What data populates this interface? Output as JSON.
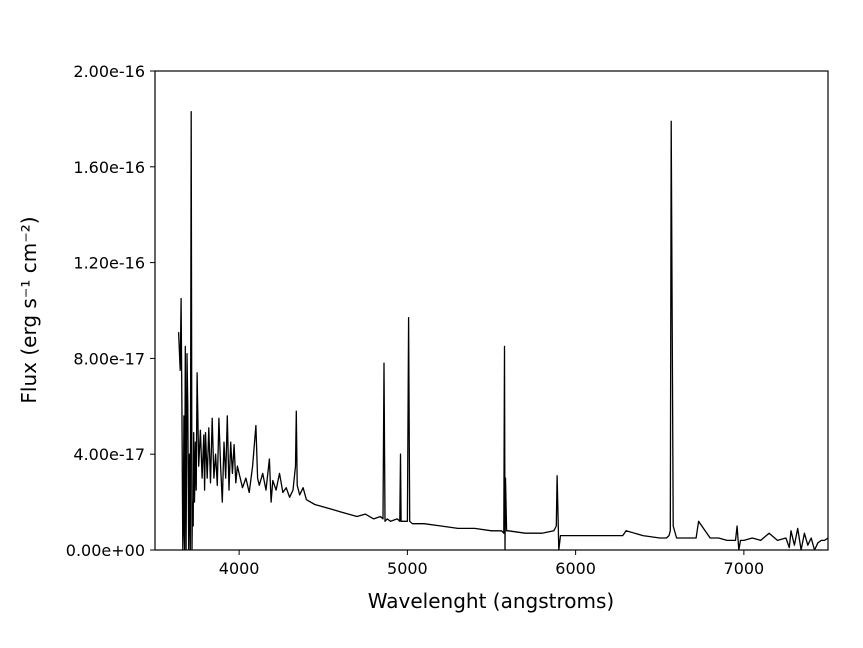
{
  "chart_data": {
    "type": "line",
    "title": "",
    "xlabel": "Wavelenght (angstroms)",
    "ylabel": "Flux (erg s⁻¹ cm⁻²)",
    "xlim": [
      3500,
      7500
    ],
    "ylim": [
      0,
      2e-16
    ],
    "x_ticks": [
      4000,
      5000,
      6000,
      7000
    ],
    "x_tick_labels": [
      "4000",
      "5000",
      "6000",
      "7000"
    ],
    "y_ticks": [
      0,
      4e-17,
      8e-17,
      1.2e-16,
      1.6e-16,
      2e-16
    ],
    "y_tick_labels": [
      "0.00e+00",
      "4.00e-17",
      "8.00e-17",
      "1.20e-16",
      "1.60e-16",
      "2.00e-16"
    ],
    "grid": false,
    "line_color": "#000000",
    "series": [
      {
        "x": [
          3640,
          3650,
          3655,
          3660,
          3665,
          3668,
          3672,
          3676,
          3680,
          3685,
          3690,
          3695,
          3700,
          3705,
          3710,
          3715,
          3720,
          3723,
          3727,
          3730,
          3735,
          3740,
          3745,
          3750,
          3760,
          3770,
          3780,
          3790,
          3795,
          3800,
          3810,
          3820,
          3830,
          3840,
          3850,
          3860,
          3870,
          3880,
          3890,
          3900,
          3910,
          3920,
          3930,
          3940,
          3950,
          3960,
          3970,
          3980,
          3990,
          4000,
          4020,
          4040,
          4060,
          4080,
          4100,
          4110,
          4120,
          4140,
          4160,
          4180,
          4190,
          4200,
          4220,
          4240,
          4260,
          4280,
          4300,
          4320,
          4335,
          4340,
          4345,
          4360,
          4380,
          4400,
          4450,
          4500,
          4550,
          4600,
          4650,
          4700,
          4750,
          4800,
          4840,
          4855,
          4861,
          4867,
          4880,
          4900,
          4940,
          4955,
          4959,
          4963,
          4980,
          5000,
          5007,
          5014,
          5030,
          5100,
          5200,
          5300,
          5400,
          5500,
          5560,
          5573,
          5577,
          5580,
          5583,
          5590,
          5600,
          5700,
          5800,
          5870,
          5885,
          5890,
          5895,
          5900,
          5910,
          6000,
          6100,
          6200,
          6280,
          6300,
          6400,
          6500,
          6540,
          6555,
          6563,
          6568,
          6580,
          6600,
          6650,
          6700,
          6716,
          6731,
          6750,
          6800,
          6850,
          6900,
          6950,
          6960,
          6970,
          6980,
          7000,
          7050,
          7100,
          7150,
          7200,
          7250,
          7270,
          7280,
          7300,
          7320,
          7340,
          7360,
          7380,
          7400,
          7420,
          7440,
          7460,
          7480,
          7500
        ],
        "values": [
          9.1e-17,
          7.5e-17,
          1.05e-16,
          6e-17,
          0,
          8e-18,
          5.6e-17,
          0,
          8.5e-17,
          0,
          8.2e-17,
          6e-17,
          0,
          4e-17,
          0,
          1.83e-16,
          0,
          2e-17,
          1e-17,
          4.9e-17,
          2e-17,
          4.5e-17,
          2.5e-17,
          7.4e-17,
          3.5e-17,
          5e-17,
          3e-17,
          4.8e-17,
          2.5e-17,
          4.9e-17,
          3e-17,
          5.1e-17,
          2.8e-17,
          5.5e-17,
          3e-17,
          4e-17,
          2.7e-17,
          5.5e-17,
          3.5e-17,
          2e-17,
          4.5e-17,
          3e-17,
          5.6e-17,
          2.5e-17,
          4.5e-17,
          3.2e-17,
          4.4e-17,
          2.8e-17,
          3.5e-17,
          3.2e-17,
          2.6e-17,
          3e-17,
          2.4e-17,
          3.5e-17,
          5.2e-17,
          3e-17,
          2.7e-17,
          3.2e-17,
          2.5e-17,
          3.8e-17,
          2e-17,
          2.9e-17,
          2.5e-17,
          3.2e-17,
          2.4e-17,
          2.6e-17,
          2.2e-17,
          2.5e-17,
          3.5e-17,
          5.8e-17,
          2.7e-17,
          2.3e-17,
          2.6e-17,
          2.1e-17,
          1.9e-17,
          1.8e-17,
          1.7e-17,
          1.6e-17,
          1.5e-17,
          1.4e-17,
          1.5e-17,
          1.3e-17,
          1.4e-17,
          1.3e-17,
          7.8e-17,
          1.2e-17,
          1.3e-17,
          1.2e-17,
          1.3e-17,
          1.2e-17,
          4e-17,
          1.2e-17,
          1.2e-17,
          1.2e-17,
          9.7e-17,
          1.2e-17,
          1.1e-17,
          1.1e-17,
          1e-17,
          9e-18,
          9e-18,
          8e-18,
          8e-18,
          7e-18,
          8.5e-17,
          0,
          3e-17,
          8e-18,
          8e-18,
          7e-18,
          7e-18,
          8e-18,
          1e-17,
          3.1e-17,
          1.5e-17,
          0,
          6e-18,
          6e-18,
          6e-18,
          6e-18,
          6e-18,
          8e-18,
          6e-18,
          5e-18,
          5e-18,
          6e-18,
          8e-18,
          1.79e-16,
          1e-17,
          5e-18,
          5e-18,
          5e-18,
          5e-18,
          1.2e-17,
          1e-17,
          5e-18,
          5e-18,
          4e-18,
          4e-18,
          1e-17,
          0,
          4e-18,
          4e-18,
          5e-18,
          4e-18,
          7e-18,
          4e-18,
          5e-18,
          1e-18,
          8e-18,
          2e-18,
          9e-18,
          0,
          7e-18,
          2e-18,
          5e-18,
          0,
          3e-18,
          4e-18,
          4e-18,
          5e-18
        ]
      }
    ]
  }
}
